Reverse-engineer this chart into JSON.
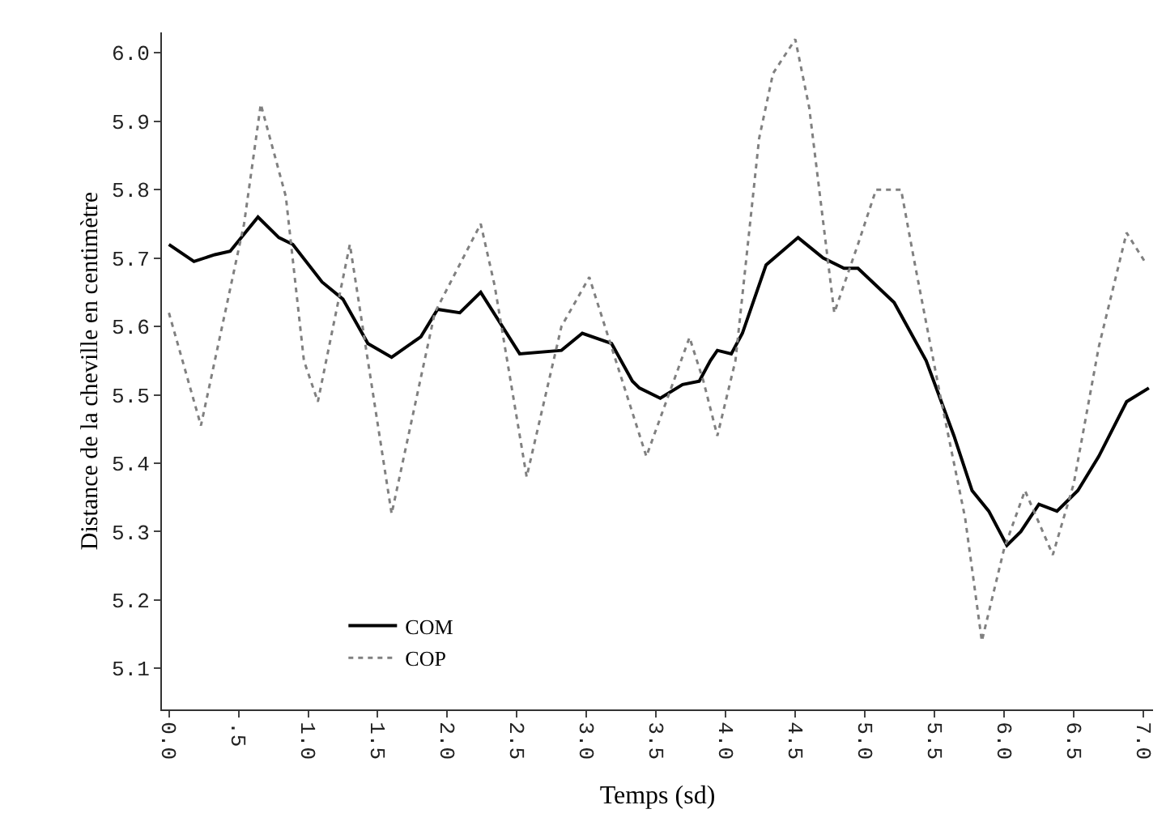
{
  "chart_data": {
    "type": "line",
    "xlabel": "Temps (sd)",
    "ylabel": "Distance de la cheville en centimètre",
    "xlim": [
      -0.05,
      7.07
    ],
    "ylim": [
      5.04,
      6.03
    ],
    "xticks": [
      {
        "value": 0,
        "label": "0.0"
      },
      {
        "value": 0.5,
        "label": ".5"
      },
      {
        "value": 1,
        "label": "1.0"
      },
      {
        "value": 1.5,
        "label": "1.5"
      },
      {
        "value": 2,
        "label": "2.0"
      },
      {
        "value": 2.5,
        "label": "2.5"
      },
      {
        "value": 3,
        "label": "3.0"
      },
      {
        "value": 3.5,
        "label": "3.5"
      },
      {
        "value": 4,
        "label": "4.0"
      },
      {
        "value": 4.5,
        "label": "4.5"
      },
      {
        "value": 5,
        "label": "5.0"
      },
      {
        "value": 5.5,
        "label": "5.5"
      },
      {
        "value": 6,
        "label": "6.0"
      },
      {
        "value": 6.5,
        "label": "6.5"
      },
      {
        "value": 7,
        "label": "7.0"
      }
    ],
    "yticks": [
      5.1,
      5.2,
      5.3,
      5.4,
      5.5,
      5.6,
      5.7,
      5.8,
      5.9,
      {
        "value": 6,
        "label": "6.0"
      }
    ],
    "grid": false,
    "legend": "bottom left",
    "series": [
      {
        "name": "COM",
        "color": "#000000",
        "line_style": "solid",
        "x": [
          0,
          0.18,
          0.33,
          0.44,
          0.64,
          0.79,
          0.89,
          1.1,
          1.25,
          1.43,
          1.6,
          1.81,
          1.93,
          2.09,
          2.24,
          2.52,
          2.82,
          2.97,
          3.18,
          3.33,
          3.38,
          3.53,
          3.69,
          3.81,
          3.89,
          3.94,
          4.04,
          4.12,
          4.29,
          4.52,
          4.7,
          4.85,
          4.95,
          5.21,
          5.44,
          5.64,
          5.77,
          5.89,
          6.02,
          6.12,
          6.25,
          6.38,
          6.53,
          6.68,
          6.88,
          7.04
        ],
        "values": [
          5.72,
          5.695,
          5.705,
          5.71,
          5.76,
          5.73,
          5.72,
          5.665,
          5.64,
          5.575,
          5.555,
          5.585,
          5.625,
          5.62,
          5.65,
          5.56,
          5.565,
          5.59,
          5.575,
          5.52,
          5.51,
          5.495,
          5.515,
          5.52,
          5.55,
          5.565,
          5.56,
          5.59,
          5.69,
          5.73,
          5.7,
          5.685,
          5.685,
          5.635,
          5.55,
          5.44,
          5.36,
          5.33,
          5.28,
          5.3,
          5.34,
          5.33,
          5.36,
          5.41,
          5.49,
          5.51
        ]
      },
      {
        "name": "COP",
        "color": "#808080",
        "line_style": "dotted",
        "x": [
          0,
          0.23,
          0.54,
          0.66,
          0.84,
          0.97,
          1.07,
          1.3,
          1.6,
          1.91,
          2.24,
          2.34,
          2.57,
          2.82,
          3.02,
          3.43,
          3.74,
          3.84,
          3.94,
          4.07,
          4.24,
          4.34,
          4.5,
          4.6,
          4.78,
          4.95,
          5.08,
          5.26,
          5.36,
          5.54,
          5.72,
          5.84,
          6.0,
          6.15,
          6.35,
          6.5,
          6.68,
          6.88,
          7.01
        ],
        "values": [
          5.62,
          5.455,
          5.75,
          5.925,
          5.79,
          5.55,
          5.49,
          5.72,
          5.326,
          5.62,
          5.75,
          5.66,
          5.38,
          5.6,
          5.672,
          5.41,
          5.584,
          5.52,
          5.44,
          5.55,
          5.875,
          5.97,
          6.02,
          5.92,
          5.62,
          5.72,
          5.8,
          5.8,
          5.69,
          5.5,
          5.32,
          5.14,
          5.275,
          5.36,
          5.266,
          5.37,
          5.57,
          5.737,
          5.695
        ]
      }
    ]
  }
}
